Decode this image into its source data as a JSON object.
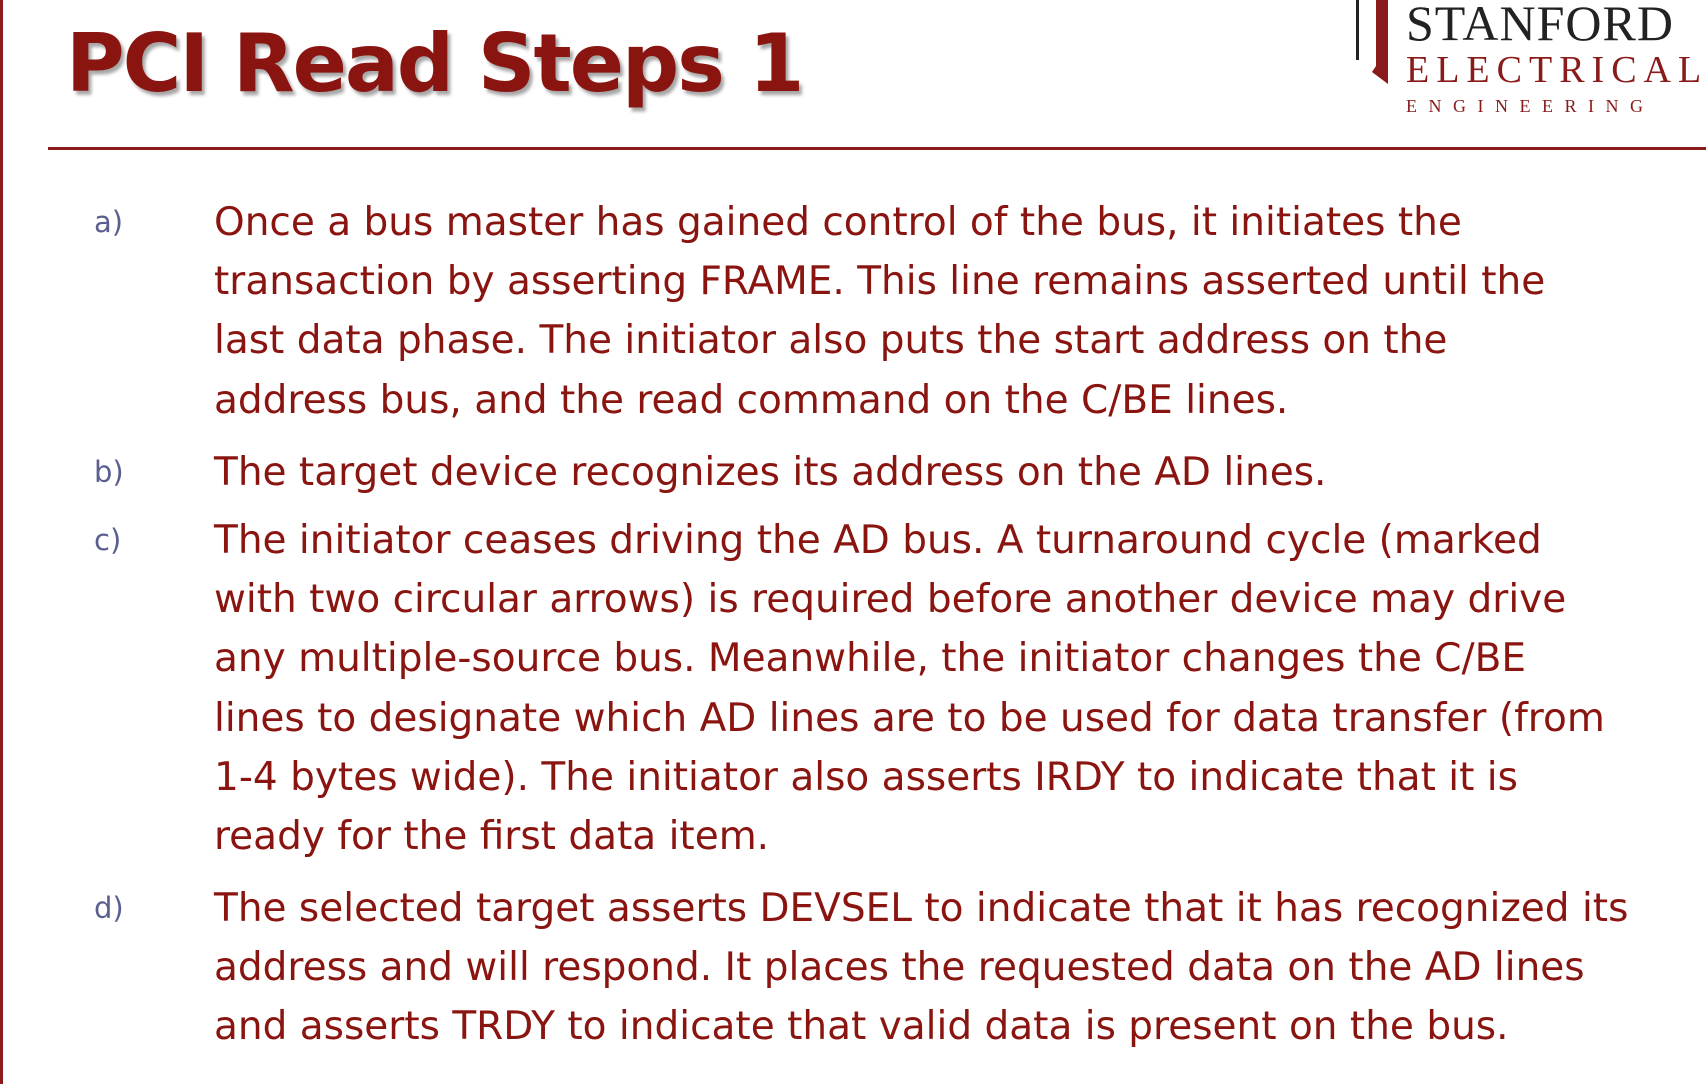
{
  "slide": {
    "title": "PCI Read Steps 1"
  },
  "logo": {
    "line1": "STANFORD",
    "line2": "ELECTRICAL",
    "line3": "ENGINEERING"
  },
  "items": [
    {
      "marker": "a)",
      "lines": [
        "Once a bus master has gained control of the bus, it initiates the",
        "transaction by asserting FRAME.  This line remains asserted until the",
        "last data phase.  The initiator also puts the start address on the",
        "address bus, and the read command on the C/BE lines."
      ]
    },
    {
      "marker": "b)",
      "lines": [
        "The target device recognizes its address on the AD lines."
      ]
    },
    {
      "marker": "c)",
      "lines": [
        "The initiator ceases driving the AD bus.  A turnaround cycle (marked",
        "with two circular arrows) is required before another device may drive",
        "any multiple-source bus.  Meanwhile, the initiator changes the C/BE",
        "lines to designate which AD lines are to be used for data transfer (from",
        "1-4 bytes wide).  The initiator also asserts IRDY to indicate that it is",
        "ready for the first data item."
      ]
    },
    {
      "marker": "d)",
      "lines": [
        "The selected target asserts DEVSEL to indicate that it has recognized its",
        "address and will respond.  It places the requested data on the AD lines",
        "and asserts TRDY to indicate that valid data is present on the bus."
      ]
    }
  ],
  "colors": {
    "accent": "#8a1510",
    "marker": "#5b5f8f",
    "logo_dark": "#222222"
  }
}
